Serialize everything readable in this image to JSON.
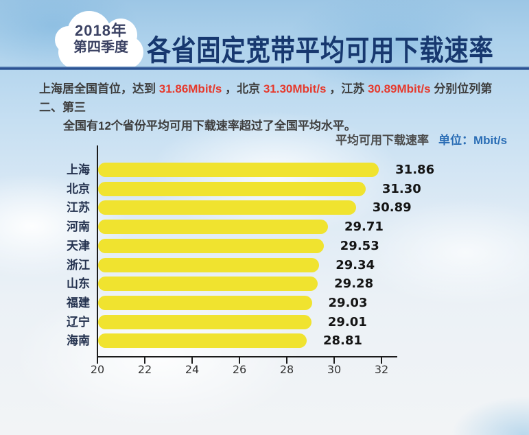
{
  "header": {
    "badge": {
      "line1": "2018年",
      "line2": "第四季度"
    },
    "title": "各省固定宽带平均可用下载速率"
  },
  "intro": {
    "lines": [
      {
        "segments": [
          {
            "text": "上海居全国首位，达到 ",
            "emphasis": false
          },
          {
            "text": "31.86Mbit/s",
            "emphasis": true
          },
          {
            "text": " ，北京 ",
            "emphasis": false
          },
          {
            "text": "31.30Mbit/s",
            "emphasis": true
          },
          {
            "text": " ，江苏 ",
            "emphasis": false
          },
          {
            "text": "30.89Mbit/s",
            "emphasis": true
          },
          {
            "text": " 分别位列第二、第三",
            "emphasis": false
          }
        ]
      },
      {
        "segments": [
          {
            "text": "全国有12个省份平均可用下载速率超过了全国平均水平。",
            "emphasis": false
          }
        ]
      }
    ]
  },
  "legend": {
    "label": "平均可用下载速率",
    "unit": "单位：Mbit/s"
  },
  "chart_data": {
    "type": "bar",
    "orientation": "horizontal",
    "title": "平均可用下载速率",
    "unit": "Mbit/s",
    "categories": [
      "上海",
      "北京",
      "江苏",
      "河南",
      "天津",
      "浙江",
      "山东",
      "福建",
      "辽宁",
      "海南"
    ],
    "values": [
      31.86,
      31.3,
      30.89,
      29.71,
      29.53,
      29.34,
      29.28,
      29.03,
      29.01,
      28.81
    ],
    "value_labels": [
      "31.86",
      "31.30",
      "30.89",
      "29.71",
      "29.53",
      "29.34",
      "29.28",
      "29.03",
      "29.01",
      "28.81"
    ],
    "xlim": [
      20,
      32
    ],
    "xticks": [
      20,
      22,
      24,
      26,
      28,
      30,
      32
    ],
    "grid": false,
    "legend_position": "top-right",
    "bar_color": "#f0e32f",
    "axis_color": "#1b1b1b",
    "value_label_color": "#141414",
    "category_color": "#24324f",
    "emphasis_color": "#e6392c",
    "title_color": "#17386f"
  }
}
